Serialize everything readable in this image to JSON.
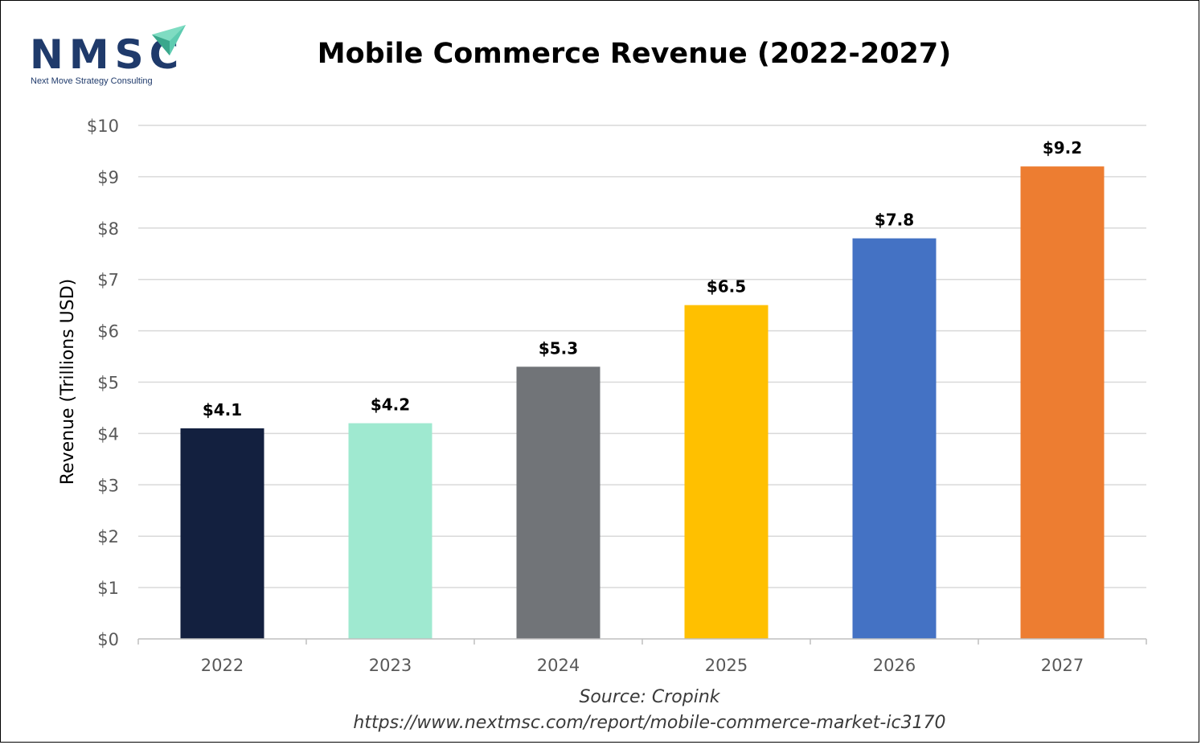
{
  "logo": {
    "text": "NMSC",
    "subtitle": "Next Move Strategy Consulting"
  },
  "chart_data": {
    "type": "bar",
    "title": "Mobile Commerce Revenue (2022-2027)",
    "xlabel": "",
    "ylabel": "Revenue (Trillions USD)",
    "categories": [
      "2022",
      "2023",
      "2024",
      "2025",
      "2026",
      "2027"
    ],
    "values": [
      4.1,
      4.2,
      5.3,
      6.5,
      7.8,
      9.2
    ],
    "data_labels": [
      "$4.1",
      "$4.2",
      "$5.3",
      "$6.5",
      "$7.8",
      "$9.2"
    ],
    "colors": [
      "#13203f",
      "#9fe9d0",
      "#717478",
      "#ffc000",
      "#4472c4",
      "#ed7d31"
    ],
    "ylim": [
      0,
      10
    ],
    "yticks": [
      0,
      1,
      2,
      3,
      4,
      5,
      6,
      7,
      8,
      9,
      10
    ],
    "ytick_labels": [
      "$0",
      "$1",
      "$2",
      "$3",
      "$4",
      "$5",
      "$6",
      "$7",
      "$8",
      "$9",
      "$10"
    ],
    "grid": true,
    "legend": "none",
    "grid_color": "#d9d9d9",
    "axis_color": "#bfbfbf"
  },
  "footer": {
    "source": "Source: Cropink",
    "url": "https://www.nextmsc.com/report/mobile-commerce-market-ic3170"
  }
}
